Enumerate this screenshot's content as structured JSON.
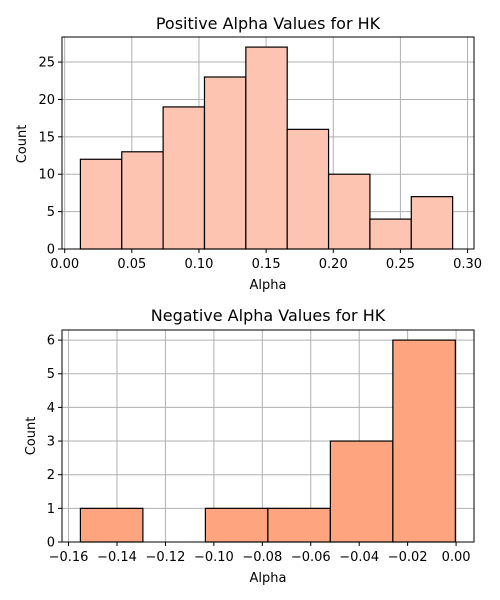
{
  "chart_data": [
    {
      "type": "histogram",
      "title": "Positive Alpha Values for HK",
      "xlabel": "Alpha",
      "ylabel": "Count",
      "xlim": [
        -0.002,
        0.3048
      ],
      "ylim": [
        0,
        28.35
      ],
      "grid": true,
      "color": "#fdc5b1",
      "bin_edges": [
        0.0117,
        0.0425,
        0.0733,
        0.1041,
        0.1349,
        0.1657,
        0.1965,
        0.2273,
        0.2581,
        0.2889
      ],
      "values": [
        12,
        13,
        19,
        23,
        27,
        16,
        10,
        4,
        7
      ],
      "xticks": [
        0.0,
        0.05,
        0.1,
        0.15,
        0.2,
        0.25,
        0.3
      ],
      "xtick_labels": [
        "0.00",
        "0.05",
        "0.10",
        "0.15",
        "0.20",
        "0.25",
        "0.30"
      ],
      "yticks": [
        0,
        5,
        10,
        15,
        20,
        25
      ],
      "ytick_labels": [
        "0",
        "5",
        "10",
        "15",
        "20",
        "25"
      ]
    },
    {
      "type": "histogram",
      "title": "Negative Alpha Values for HK",
      "xlabel": "Alpha",
      "ylabel": "Count",
      "xlim": [
        -0.1627,
        0.0074
      ],
      "ylim": [
        0,
        6.3
      ],
      "grid": true,
      "color": "#fea47f",
      "bin_edges": [
        -0.1551,
        -0.1293,
        -0.1035,
        -0.0777,
        -0.0519,
        -0.0261,
        -0.0003
      ],
      "values": [
        1,
        0,
        1,
        1,
        3,
        6
      ],
      "xticks": [
        -0.16,
        -0.14,
        -0.12,
        -0.1,
        -0.08,
        -0.06,
        -0.04,
        -0.02,
        0.0
      ],
      "xtick_labels": [
        "−0.16",
        "−0.14",
        "−0.12",
        "−0.10",
        "−0.08",
        "−0.06",
        "−0.04",
        "−0.02",
        "0.00"
      ],
      "yticks": [
        0,
        1,
        2,
        3,
        4,
        5,
        6
      ],
      "ytick_labels": [
        "0",
        "1",
        "2",
        "3",
        "4",
        "5",
        "6"
      ]
    }
  ]
}
